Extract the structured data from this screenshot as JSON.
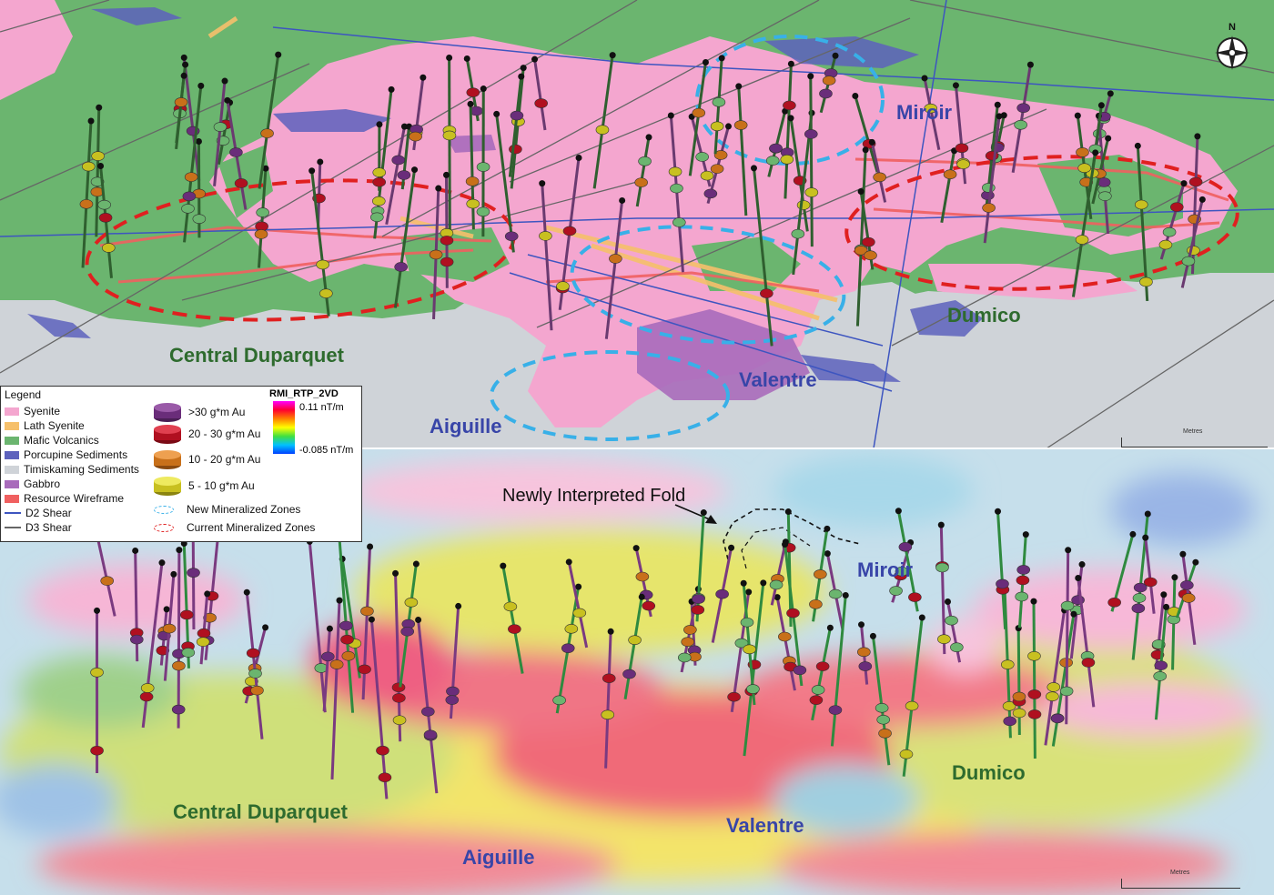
{
  "legend": {
    "title": "Legend",
    "geology": [
      {
        "label": "Syenite",
        "color": "#f4a6cf",
        "kind": "fill"
      },
      {
        "label": "Lath Syenite",
        "color": "#f6c06b",
        "kind": "fill"
      },
      {
        "label": "Mafic Volcanics",
        "color": "#6bb56f",
        "kind": "fill"
      },
      {
        "label": "Porcupine Sediments",
        "color": "#5d62bd",
        "kind": "fill"
      },
      {
        "label": "Timiskaming Sediments",
        "color": "#cfd3d8",
        "kind": "fill"
      },
      {
        "label": "Gabbro",
        "color": "#a96bbb",
        "kind": "fill"
      },
      {
        "label": "Resource Wireframe",
        "color": "#f06060",
        "kind": "fill"
      },
      {
        "label": "D2 Shear",
        "color": "#3d55c0",
        "kind": "line"
      },
      {
        "label": "D3 Shear",
        "color": "#666666",
        "kind": "line"
      }
    ],
    "grades": [
      {
        "label": ">30 g*m Au",
        "color": "#6a2d7a"
      },
      {
        "label": "20 - 30 g*m Au",
        "color": "#b01020"
      },
      {
        "label": "10 - 20 g*m Au",
        "color": "#c8701a"
      },
      {
        "label": "5 - 10 g*m Au",
        "color": "#c8c020"
      }
    ],
    "zones": [
      {
        "label": "New Mineralized Zones",
        "color": "#38b0e8"
      },
      {
        "label": "Current Mineralized Zones",
        "color": "#e02020"
      }
    ]
  },
  "colorbar": {
    "title": "RMI_RTP_2VD",
    "max_label": "0.11 nT/m",
    "min_label": "-0.085 nT/m"
  },
  "top_map": {
    "labels": {
      "central_duparquet": "Central Duparquet",
      "aiguille": "Aiguille",
      "valentre": "Valentre",
      "miroir": "Miroir",
      "dumico": "Dumico"
    },
    "scale_title": "Metres",
    "north_label": "N"
  },
  "bottom_map": {
    "labels": {
      "central_duparquet": "Central Duparquet",
      "aiguille": "Aiguille",
      "valentre": "Valentre",
      "miroir": "Miroir",
      "dumico": "Dumico",
      "fold_annotation": "Newly Interpreted Fold"
    },
    "scale_title": "Metres"
  },
  "colors": {
    "label_green": "#2e6b2e",
    "label_blue": "#3845a8",
    "mafic": "#6bb56f",
    "syenite": "#f4a6cf",
    "timiskaming": "#cfd3d8",
    "porcupine": "#5d62bd",
    "gabbro": "#a96bbb"
  }
}
